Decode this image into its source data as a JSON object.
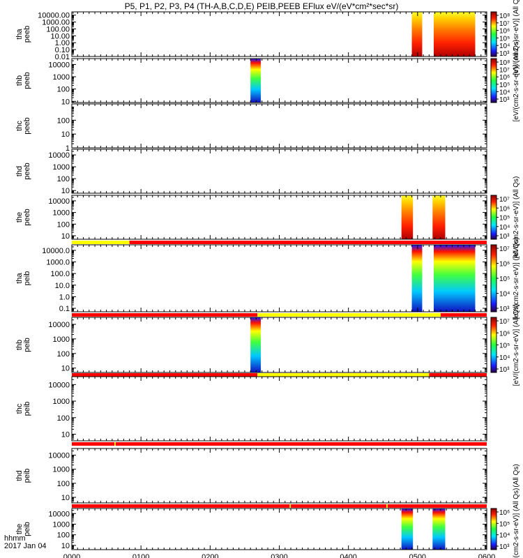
{
  "title": "P5, P1, P2, P3, P4 (TH-A,B,C,D,E) PEIB,PEEB EFlux eV/(eV*cm²*sec*sr)",
  "footer": {
    "time_label": "hhmm",
    "date_label": "2017 Jan 04"
  },
  "colors": {
    "state_bar_red": "#ff0000",
    "state_bar_yellow": "#ffff00",
    "frame": "#000000"
  },
  "chart_data": {
    "type": "heatmap",
    "x_ticks": [
      "0000",
      "0100",
      "0200",
      "0300",
      "0400",
      "0500",
      "0600"
    ],
    "x_range": [
      "00:00",
      "06:00"
    ],
    "colormap": "rainbow (purple-blue-cyan-green-yellow-red, dark red top)",
    "panels": [
      {
        "ylabel": [
          "tha",
          "peeb"
        ],
        "yscale": "log",
        "ylim": [
          0.01,
          30000
        ],
        "y_ticks": [
          "10000.00",
          "1000.00",
          "100.00",
          "10.00",
          "1.00",
          "0.10",
          "0.01"
        ],
        "data_blocks": [
          {
            "t_start": "04:55",
            "t_end": "05:04",
            "level": "high"
          },
          {
            "t_start": "05:14",
            "t_end": "05:50",
            "level": "high"
          }
        ],
        "colorbar": {
          "label": "[eV/(cm2-s-sr-eV)] (All Qs)",
          "ticks": [
            "10⁸",
            "10⁷",
            "10⁶",
            "10⁵",
            "10⁴",
            "10³"
          ]
        }
      },
      {
        "ylabel": [
          "thb",
          "peeb"
        ],
        "yscale": "log",
        "ylim": [
          8,
          30000
        ],
        "y_ticks": [
          "10000",
          "1000",
          "100",
          "10"
        ],
        "data_blocks": [
          {
            "t_start": "02:35",
            "t_end": "02:44",
            "level": "mixed"
          }
        ],
        "colorbar": {
          "label": "[eV/(cm2-s-sr-eV)] (All Qs)",
          "ticks": [
            "10⁸",
            "10⁷",
            "10⁶",
            "10⁵",
            "10⁴",
            "10³"
          ]
        }
      },
      {
        "ylabel": [
          "thc",
          "peeb"
        ],
        "yscale": "log",
        "ylim": [
          1,
          1500
        ],
        "y_ticks": [
          "100",
          "10",
          "1"
        ],
        "data_blocks": []
      },
      {
        "ylabel": [
          "thd",
          "peeb"
        ],
        "yscale": "log",
        "ylim": [
          6,
          30000
        ],
        "y_ticks": [
          "10000",
          "1000",
          "100",
          "10"
        ],
        "data_blocks": []
      },
      {
        "ylabel": [
          "the",
          "peeb"
        ],
        "yscale": "log",
        "ylim": [
          5,
          30000
        ],
        "y_ticks": [
          "10000",
          "1000",
          "100",
          "10"
        ],
        "data_blocks": [
          {
            "t_start": "04:46",
            "t_end": "04:56",
            "level": "high"
          },
          {
            "t_start": "05:13",
            "t_end": "05:24",
            "level": "high"
          }
        ],
        "colorbar": {
          "label": "[eV/(cm2-s-sr-eV)] (All Qs)",
          "ticks": [
            "10⁷",
            "10⁶",
            "10⁵",
            "10⁴",
            "10³"
          ]
        },
        "state_bar": [
          {
            "t_start": "00:00",
            "t_end": "00:50",
            "state": "yellow"
          },
          {
            "t_start": "00:50",
            "t_end": "06:00",
            "state": "red"
          }
        ]
      },
      {
        "ylabel": [
          "tha",
          "peib"
        ],
        "yscale": "log",
        "ylim": [
          0.05,
          30000
        ],
        "y_ticks": [
          "10000.0",
          "1000.0",
          "100.0",
          "10.0",
          "1.0",
          "0.1"
        ],
        "data_blocks": [
          {
            "t_start": "04:55",
            "t_end": "05:04",
            "level": "mixed"
          },
          {
            "t_start": "05:14",
            "t_end": "05:50",
            "level": "mixed"
          }
        ],
        "colorbar": {
          "label": "[eV/(cm2-s-sr-eV)] (All Qs)",
          "ticks": [
            "10⁷",
            "10⁶",
            "10⁵",
            "10⁴",
            "10³"
          ]
        },
        "state_bar": [
          {
            "t_start": "00:00",
            "t_end": "02:41",
            "state": "red"
          },
          {
            "t_start": "02:41",
            "t_end": "05:20",
            "state": "yellow"
          },
          {
            "t_start": "05:20",
            "t_end": "06:00",
            "state": "red"
          }
        ]
      },
      {
        "ylabel": [
          "thb",
          "peib"
        ],
        "yscale": "log",
        "ylim": [
          5,
          30000
        ],
        "y_ticks": [
          "10000",
          "1000",
          "100",
          "10"
        ],
        "data_blocks": [
          {
            "t_start": "02:35",
            "t_end": "02:44",
            "level": "mixed"
          }
        ],
        "colorbar": {
          "label": "[eV/(cm2-s-sr-eV)] (All Qs)",
          "ticks": [
            "10⁷",
            "10⁶",
            "10⁵",
            "10⁴",
            "10³"
          ]
        },
        "state_bar": [
          {
            "t_start": "00:00",
            "t_end": "02:41",
            "state": "red"
          },
          {
            "t_start": "02:41",
            "t_end": "05:10",
            "state": "yellow"
          },
          {
            "t_start": "05:10",
            "t_end": "06:00",
            "state": "red"
          }
        ]
      },
      {
        "ylabel": [
          "thc",
          "peib"
        ],
        "yscale": "log",
        "ylim": [
          4,
          30000
        ],
        "y_ticks": [
          "10000",
          "1000",
          "100",
          "10"
        ],
        "data_blocks": [],
        "state_bar": [
          {
            "t_start": "00:00",
            "t_end": "00:37",
            "state": "red"
          },
          {
            "t_start": "00:37",
            "t_end": "00:38",
            "state": "yellow"
          },
          {
            "t_start": "00:38",
            "t_end": "06:00",
            "state": "red"
          }
        ]
      },
      {
        "ylabel": [
          "thd",
          "peib"
        ],
        "yscale": "log",
        "ylim": [
          4,
          30000
        ],
        "y_ticks": [
          "10000",
          "1000",
          "100",
          "10"
        ],
        "data_blocks": [],
        "colorbar": {
          "label": "(All Qs)",
          "ticks": []
        },
        "state_bar": [
          {
            "t_start": "00:00",
            "t_end": "03:09",
            "state": "red"
          },
          {
            "t_start": "03:09",
            "t_end": "03:10",
            "state": "yellow"
          },
          {
            "t_start": "03:10",
            "t_end": "04:33",
            "state": "red"
          },
          {
            "t_start": "04:33",
            "t_end": "04:34",
            "state": "yellow"
          },
          {
            "t_start": "04:34",
            "t_end": "06:00",
            "state": "red"
          }
        ]
      },
      {
        "ylabel": [
          "the",
          "peib"
        ],
        "yscale": "log",
        "ylim": [
          4,
          30000
        ],
        "y_ticks": [
          "10000",
          "1000",
          "100",
          "10"
        ],
        "data_blocks": [
          {
            "t_start": "04:46",
            "t_end": "04:56",
            "level": "mixed"
          },
          {
            "t_start": "05:13",
            "t_end": "05:24",
            "level": "mixed"
          }
        ],
        "colorbar": {
          "label": "[eV/(cm2-s-sr-eV)] (All Qs)",
          "ticks": [
            "10⁶",
            "10⁵",
            "10⁴",
            "10³"
          ]
        }
      }
    ]
  }
}
